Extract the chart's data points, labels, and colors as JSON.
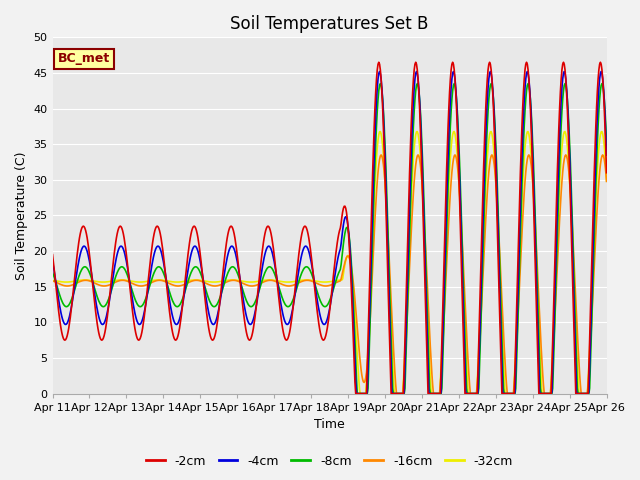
{
  "title": "Soil Temperatures Set B",
  "xlabel": "Time",
  "ylabel": "Soil Temperature (C)",
  "ylim": [
    0,
    50
  ],
  "yticks": [
    0,
    5,
    10,
    15,
    20,
    25,
    30,
    35,
    40,
    45,
    50
  ],
  "xtick_labels": [
    "Apr 11",
    "Apr 12",
    "Apr 13",
    "Apr 14",
    "Apr 15",
    "Apr 16",
    "Apr 17",
    "Apr 18",
    "Apr 19",
    "Apr 20",
    "Apr 21",
    "Apr 22",
    "Apr 23",
    "Apr 24",
    "Apr 25",
    "Apr 26"
  ],
  "annotation": "BC_met",
  "colors": {
    "-2cm": "#dd0000",
    "-4cm": "#0000dd",
    "-8cm": "#00bb00",
    "-16cm": "#ff8800",
    "-32cm": "#eeee00"
  },
  "background_color": "#e8e8e8",
  "grid_color": "#ffffff",
  "title_fontsize": 12,
  "label_fontsize": 9,
  "tick_fontsize": 8,
  "linewidth": 1.2
}
